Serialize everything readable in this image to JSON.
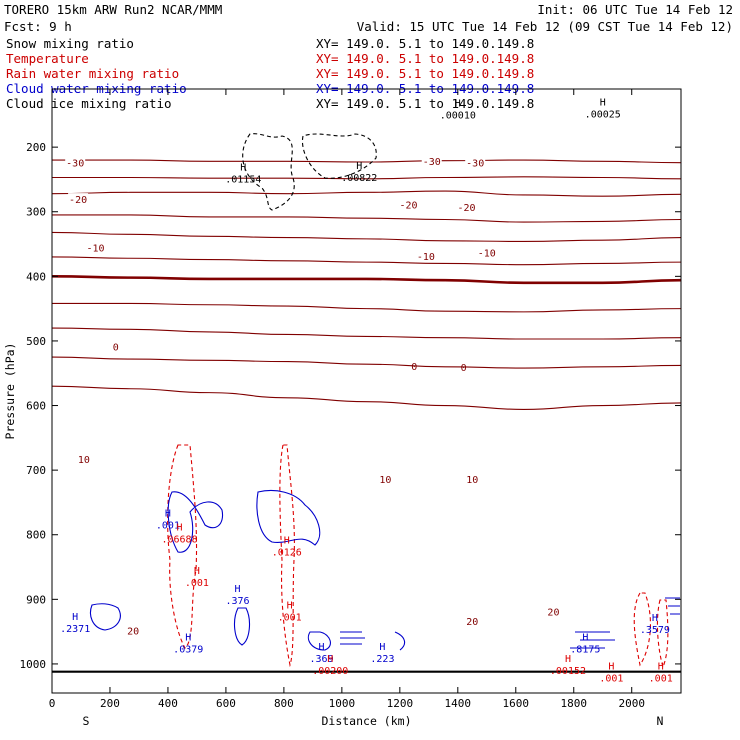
{
  "header": {
    "model": "TORERO   15km ARW   Run2    NCAR/MMM",
    "init": "Init: 06 UTC Tue 14 Feb 12",
    "fcst": "Fcst:    9 h",
    "valid": "Valid: 15 UTC Tue 14 Feb 12 (09 CST Tue 14 Feb 12)"
  },
  "legend": [
    {
      "name": "Snow mixing ratio",
      "xy": "XY= 149.0.  5.1 to 149.0.149.8",
      "color": "#000000"
    },
    {
      "name": "Temperature",
      "xy": "XY= 149.0.  5.1 to 149.0.149.8",
      "color": "#cc0000"
    },
    {
      "name": "Rain water mixing ratio",
      "xy": "XY= 149.0.  5.1 to 149.0.149.8",
      "color": "#cc0000"
    },
    {
      "name": "Cloud water mixing ratio",
      "xy": "XY= 149.0.  5.1 to 149.0.149.8",
      "color": "#0000cc"
    },
    {
      "name": "Cloud ice mixing ratio",
      "xy": "XY= 149.0.  5.1 to 149.0.149.8",
      "color": "#000000"
    }
  ],
  "chart_data": {
    "type": "cross-section contour",
    "xlabel": "Distance (km)",
    "ylabel": "Pressure (hPa)",
    "xlim": [
      0,
      2170
    ],
    "ylim": [
      1045,
      110
    ],
    "xticks": [
      0,
      200,
      400,
      600,
      800,
      1000,
      1200,
      1400,
      1600,
      1800,
      2000
    ],
    "yticks": [
      200,
      300,
      400,
      500,
      600,
      700,
      800,
      900,
      1000
    ],
    "end_labels": {
      "left": "S",
      "right": "N"
    },
    "ground_pressure": 1012,
    "colors": {
      "temperature": "#800000",
      "rain": "#dd0000",
      "cloud": "#0000cc",
      "ice": "#000000"
    },
    "isotherms": [
      {
        "value": -30,
        "label": "-30",
        "p": [
          220,
          220,
          222,
          222,
          223,
          221,
          220,
          222,
          224
        ],
        "label_pts": [
          [
            80,
            225
          ],
          [
            1310,
            223
          ],
          [
            1460,
            225
          ]
        ]
      },
      {
        "value": -25,
        "label": "",
        "p": [
          247,
          247,
          248,
          248,
          249,
          247,
          246,
          247,
          249
        ]
      },
      {
        "value": -20,
        "label": "-20",
        "p": [
          272,
          270,
          270,
          272,
          270,
          268,
          274,
          276,
          273
        ],
        "label_pts": [
          [
            90,
            282
          ],
          [
            1230,
            290
          ],
          [
            1430,
            294
          ]
        ]
      },
      {
        "value": -15,
        "label": "",
        "p": [
          305,
          305,
          308,
          308,
          310,
          312,
          316,
          315,
          312
        ]
      },
      {
        "value": -10,
        "label": "-10",
        "p": [
          332,
          335,
          338,
          340,
          342,
          345,
          346,
          344,
          340
        ],
        "label_pts": [
          [
            150,
            357
          ],
          [
            1290,
            370
          ],
          [
            1500,
            365
          ]
        ]
      },
      {
        "value": -5,
        "label": "",
        "p": [
          370,
          372,
          374,
          376,
          378,
          380,
          382,
          380,
          378
        ]
      },
      {
        "value": 0,
        "label": "0",
        "p": [
          400,
          402,
          404,
          404,
          404,
          406,
          410,
          410,
          406
        ],
        "label_pts": [
          [
            220,
            510
          ],
          [
            1250,
            540
          ],
          [
            1420,
            542
          ]
        ],
        "bold": true
      },
      {
        "value": 5,
        "label": "",
        "p": [
          442,
          442,
          444,
          446,
          450,
          454,
          455,
          452,
          450
        ]
      },
      {
        "value": 10,
        "label": "10",
        "p": [
          480,
          482,
          486,
          490,
          493,
          495,
          497,
          497,
          495
        ],
        "label_pts": [
          [
            110,
            684
          ],
          [
            1150,
            715
          ],
          [
            1450,
            715
          ]
        ]
      },
      {
        "value": 15,
        "label": "",
        "p": [
          525,
          528,
          530,
          532,
          536,
          540,
          542,
          540,
          538
        ]
      },
      {
        "value": 20,
        "label": "20",
        "p": [
          570,
          574,
          580,
          588,
          594,
          600,
          606,
          600,
          596
        ],
        "label_pts": [
          [
            280,
            950
          ],
          [
            1450,
            935
          ],
          [
            1730,
            920
          ]
        ]
      }
    ],
    "maxima": [
      {
        "series": "ice",
        "x": 660,
        "p": 242,
        "value": ".01154"
      },
      {
        "series": "ice",
        "x": 1060,
        "p": 240,
        "value": ".00822"
      },
      {
        "series": "ice",
        "x": 1400,
        "p": 143,
        "value": ".00010"
      },
      {
        "series": "ice",
        "x": 1900,
        "p": 142,
        "value": ".00025"
      },
      {
        "series": "cloud",
        "x": 400,
        "p": 778,
        "value": ".001"
      },
      {
        "series": "rain",
        "x": 440,
        "p": 800,
        "value": ".06688"
      },
      {
        "series": "rain",
        "x": 810,
        "p": 820,
        "value": ".0126"
      },
      {
        "series": "rain",
        "x": 500,
        "p": 867,
        "value": ".001"
      },
      {
        "series": "rain",
        "x": 820,
        "p": 920,
        "value": ".001"
      },
      {
        "series": "cloud",
        "x": 640,
        "p": 895,
        "value": ".376"
      },
      {
        "series": "cloud",
        "x": 80,
        "p": 938,
        "value": ".2371"
      },
      {
        "series": "cloud",
        "x": 470,
        "p": 970,
        "value": ".0379"
      },
      {
        "series": "cloud",
        "x": 930,
        "p": 985,
        "value": ".369"
      },
      {
        "series": "rain",
        "x": 960,
        "p": 1003,
        "value": ".00200"
      },
      {
        "series": "cloud",
        "x": 1140,
        "p": 985,
        "value": ".223"
      },
      {
        "series": "cloud",
        "x": 1840,
        "p": 970,
        "value": ".8175"
      },
      {
        "series": "cloud",
        "x": 2080,
        "p": 940,
        "value": ".3579"
      },
      {
        "series": "rain",
        "x": 1780,
        "p": 1003,
        "value": ".00152"
      },
      {
        "series": "rain",
        "x": 1930,
        "p": 1015,
        "value": ".001"
      },
      {
        "series": "rain",
        "x": 2100,
        "p": 1015,
        "value": ".001"
      }
    ]
  }
}
